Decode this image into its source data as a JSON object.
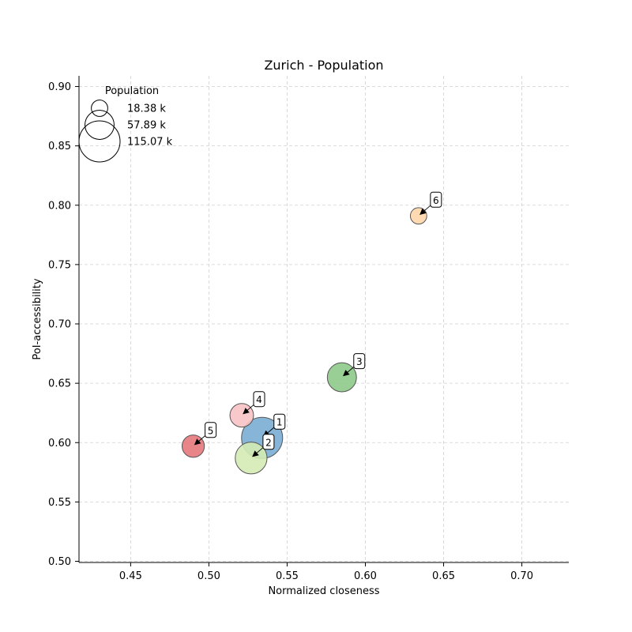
{
  "chart_data": {
    "type": "scatter",
    "title": "Zurich - Population",
    "xlabel": "Normalized closeness",
    "ylabel": "PoI-accessibility",
    "xlim": [
      0.417,
      0.73
    ],
    "ylim": [
      0.499,
      0.909
    ],
    "xticks": [
      0.45,
      0.5,
      0.55,
      0.6,
      0.65,
      0.7
    ],
    "xtick_labels": [
      "0.45",
      "0.50",
      "0.55",
      "0.60",
      "0.65",
      "0.70"
    ],
    "yticks": [
      0.5,
      0.55,
      0.6,
      0.65,
      0.7,
      0.75,
      0.8,
      0.85,
      0.9
    ],
    "ytick_labels": [
      "0.50",
      "0.55",
      "0.60",
      "0.65",
      "0.70",
      "0.75",
      "0.80",
      "0.85",
      "0.90"
    ],
    "grid": true,
    "points": [
      {
        "label": "1",
        "x": 0.534,
        "y": 0.604,
        "population_k": 115.07,
        "color": "#7aadd4"
      },
      {
        "label": "2",
        "x": 0.527,
        "y": 0.587,
        "population_k": 69.0,
        "color": "#d4ebb4"
      },
      {
        "label": "3",
        "x": 0.585,
        "y": 0.655,
        "population_k": 57.89,
        "color": "#8ec98a"
      },
      {
        "label": "4",
        "x": 0.521,
        "y": 0.623,
        "population_k": 38.0,
        "color": "#f8c2c4"
      },
      {
        "label": "5",
        "x": 0.49,
        "y": 0.597,
        "population_k": 34.0,
        "color": "#e6787c"
      },
      {
        "label": "6",
        "x": 0.634,
        "y": 0.791,
        "population_k": 18.38,
        "color": "#fdd6a8"
      }
    ],
    "legend": {
      "title": "Population",
      "position": "top-left",
      "entries": [
        {
          "label": "18.38 k",
          "value": 18.38
        },
        {
          "label": "57.89 k",
          "value": 57.89
        },
        {
          "label": "115.07 k",
          "value": 115.07
        }
      ]
    }
  }
}
